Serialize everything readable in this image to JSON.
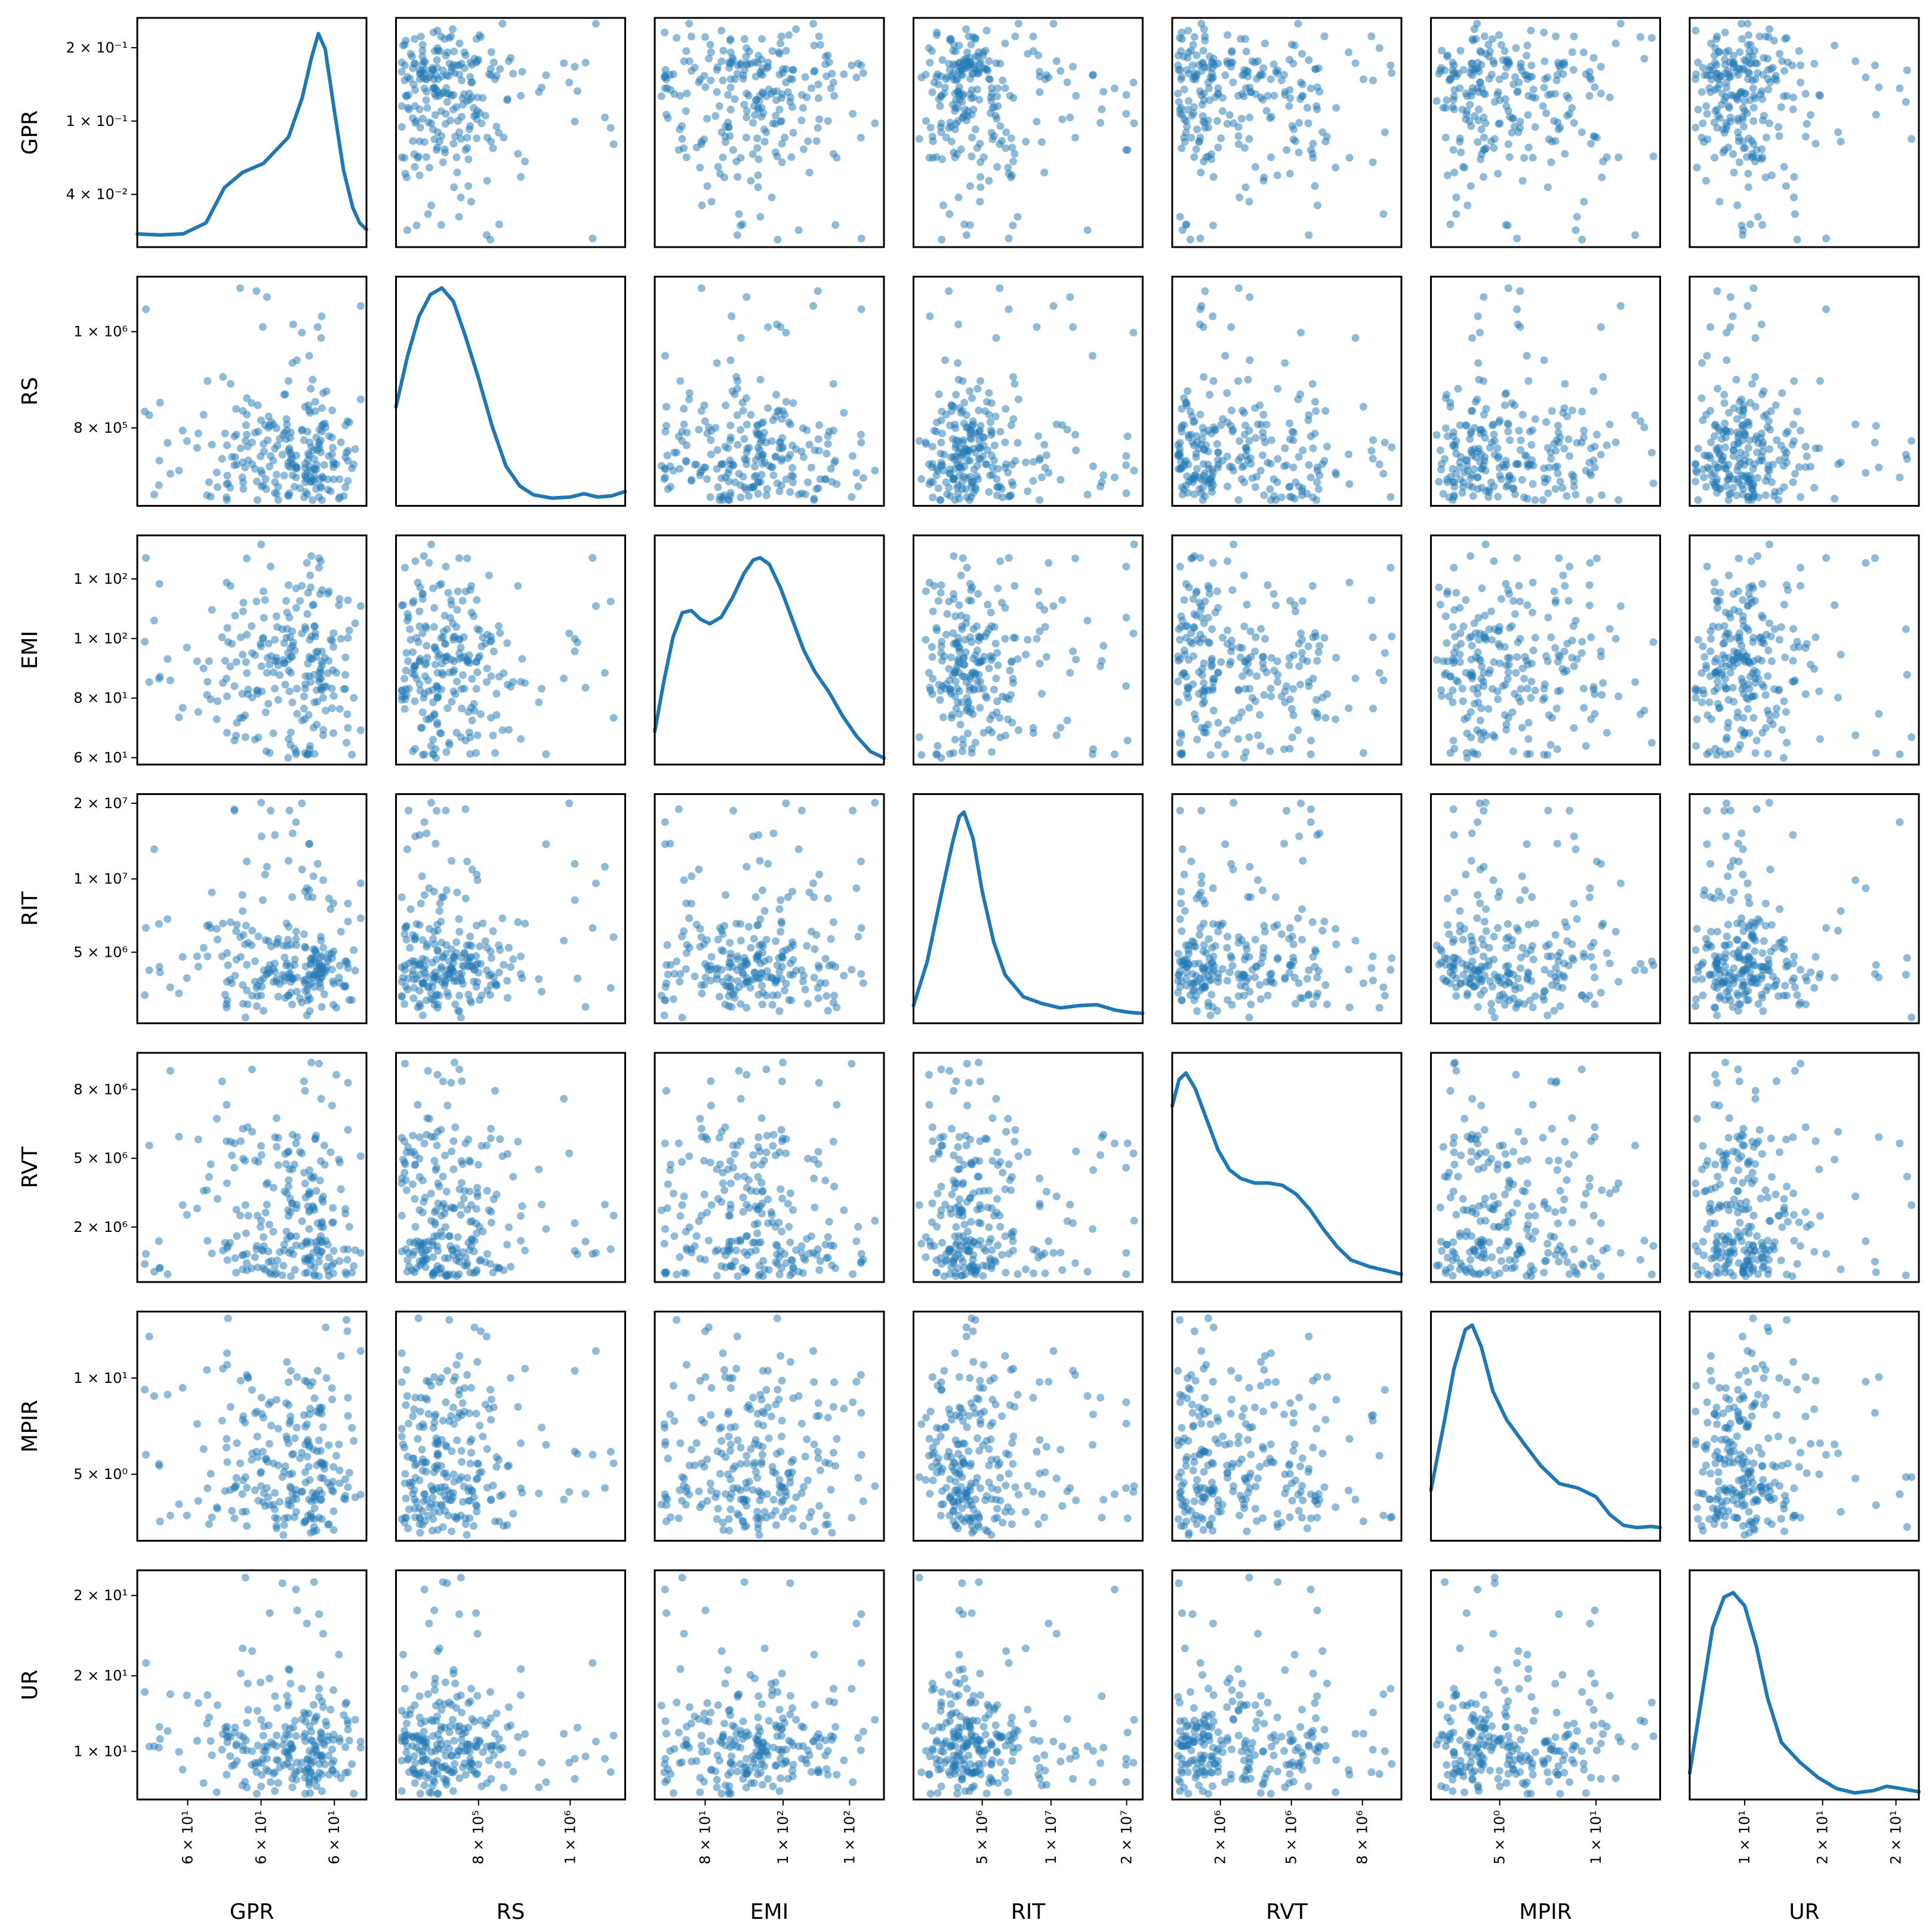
{
  "chart_data": {
    "type": "scatter",
    "title": "",
    "variables": [
      "GPR",
      "RS",
      "EMI",
      "RIT",
      "RVT",
      "MPIR",
      "UR"
    ],
    "diagonal": "kde",
    "scale": "log",
    "marker_color": "#1f77b4",
    "marker_alpha": 0.5,
    "y_tick_labels": {
      "GPR": [
        "2 × 10⁻¹",
        "1 × 10⁻¹",
        "4 × 10⁻²"
      ],
      "RS": [
        "1 × 10⁶",
        "8 × 10⁵"
      ],
      "EMI": [
        "1 × 10²",
        "1 × 10²",
        "8 × 10¹",
        "6 × 10¹"
      ],
      "RIT": [
        "2 × 10⁷",
        "1 × 10⁷",
        "5 × 10⁶"
      ],
      "RVT": [
        "8 × 10⁶",
        "5 × 10⁶",
        "2 × 10⁶"
      ],
      "MPIR": [
        "1 × 10¹",
        "5 × 10⁰"
      ],
      "UR": [
        "2 × 10¹",
        "2 × 10¹",
        "1 × 10¹"
      ]
    },
    "x_tick_labels": {
      "GPR": [
        "6 × 10¹",
        "6 × 10¹",
        "6 × 10¹"
      ],
      "RS": [
        "8 × 10⁵",
        "1 × 10⁶"
      ],
      "EMI": [
        "8 × 10¹",
        "1 × 10²",
        "1 × 10²"
      ],
      "RIT": [
        "5 × 10⁶",
        "1 × 10⁷",
        "2 × 10⁷"
      ],
      "RVT": [
        "2 × 10⁶",
        "5 × 10⁶",
        "8 × 10⁶"
      ],
      "MPIR": [
        "5 × 10⁰",
        "1 × 10¹"
      ],
      "UR": [
        "1 × 10¹",
        "2 × 10¹",
        "2 × 10¹"
      ]
    },
    "kde_curves": {
      "GPR": [
        [
          0.0,
          0.06
        ],
        [
          0.1,
          0.055
        ],
        [
          0.2,
          0.06
        ],
        [
          0.3,
          0.11
        ],
        [
          0.38,
          0.27
        ],
        [
          0.46,
          0.34
        ],
        [
          0.55,
          0.38
        ],
        [
          0.66,
          0.5
        ],
        [
          0.72,
          0.68
        ],
        [
          0.76,
          0.86
        ],
        [
          0.79,
          0.97
        ],
        [
          0.82,
          0.9
        ],
        [
          0.86,
          0.62
        ],
        [
          0.9,
          0.35
        ],
        [
          0.94,
          0.18
        ],
        [
          0.97,
          0.11
        ],
        [
          1.0,
          0.08
        ]
      ],
      "RS": [
        [
          0.0,
          0.45
        ],
        [
          0.05,
          0.68
        ],
        [
          0.1,
          0.86
        ],
        [
          0.15,
          0.96
        ],
        [
          0.2,
          0.99
        ],
        [
          0.25,
          0.93
        ],
        [
          0.3,
          0.78
        ],
        [
          0.36,
          0.58
        ],
        [
          0.42,
          0.36
        ],
        [
          0.48,
          0.18
        ],
        [
          0.54,
          0.09
        ],
        [
          0.6,
          0.05
        ],
        [
          0.68,
          0.035
        ],
        [
          0.76,
          0.04
        ],
        [
          0.82,
          0.055
        ],
        [
          0.88,
          0.04
        ],
        [
          0.94,
          0.045
        ],
        [
          1.0,
          0.065
        ]
      ],
      "EMI": [
        [
          0.0,
          0.15
        ],
        [
          0.04,
          0.38
        ],
        [
          0.08,
          0.58
        ],
        [
          0.12,
          0.69
        ],
        [
          0.16,
          0.7
        ],
        [
          0.2,
          0.66
        ],
        [
          0.24,
          0.64
        ],
        [
          0.29,
          0.67
        ],
        [
          0.34,
          0.76
        ],
        [
          0.39,
          0.87
        ],
        [
          0.43,
          0.93
        ],
        [
          0.46,
          0.94
        ],
        [
          0.5,
          0.91
        ],
        [
          0.55,
          0.8
        ],
        [
          0.6,
          0.66
        ],
        [
          0.65,
          0.52
        ],
        [
          0.7,
          0.42
        ],
        [
          0.76,
          0.33
        ],
        [
          0.82,
          0.22
        ],
        [
          0.88,
          0.13
        ],
        [
          0.94,
          0.06
        ],
        [
          1.0,
          0.03
        ]
      ],
      "RIT": [
        [
          0.0,
          0.08
        ],
        [
          0.06,
          0.28
        ],
        [
          0.12,
          0.58
        ],
        [
          0.17,
          0.82
        ],
        [
          0.2,
          0.94
        ],
        [
          0.22,
          0.96
        ],
        [
          0.26,
          0.84
        ],
        [
          0.3,
          0.6
        ],
        [
          0.35,
          0.37
        ],
        [
          0.4,
          0.22
        ],
        [
          0.48,
          0.12
        ],
        [
          0.56,
          0.09
        ],
        [
          0.64,
          0.07
        ],
        [
          0.72,
          0.08
        ],
        [
          0.8,
          0.085
        ],
        [
          0.88,
          0.06
        ],
        [
          0.94,
          0.05
        ],
        [
          1.0,
          0.045
        ]
      ],
      "RVT": [
        [
          0.0,
          0.8
        ],
        [
          0.03,
          0.92
        ],
        [
          0.06,
          0.95
        ],
        [
          0.1,
          0.88
        ],
        [
          0.15,
          0.74
        ],
        [
          0.2,
          0.6
        ],
        [
          0.25,
          0.51
        ],
        [
          0.3,
          0.47
        ],
        [
          0.36,
          0.45
        ],
        [
          0.42,
          0.45
        ],
        [
          0.48,
          0.44
        ],
        [
          0.54,
          0.4
        ],
        [
          0.6,
          0.33
        ],
        [
          0.66,
          0.24
        ],
        [
          0.72,
          0.16
        ],
        [
          0.78,
          0.1
        ],
        [
          0.86,
          0.07
        ],
        [
          0.94,
          0.05
        ],
        [
          1.0,
          0.035
        ]
      ],
      "MPIR": [
        [
          0.0,
          0.23
        ],
        [
          0.06,
          0.55
        ],
        [
          0.1,
          0.78
        ],
        [
          0.15,
          0.96
        ],
        [
          0.18,
          0.98
        ],
        [
          0.22,
          0.88
        ],
        [
          0.27,
          0.68
        ],
        [
          0.33,
          0.55
        ],
        [
          0.4,
          0.45
        ],
        [
          0.48,
          0.34
        ],
        [
          0.56,
          0.26
        ],
        [
          0.64,
          0.24
        ],
        [
          0.72,
          0.2
        ],
        [
          0.78,
          0.12
        ],
        [
          0.84,
          0.07
        ],
        [
          0.9,
          0.06
        ],
        [
          0.96,
          0.065
        ],
        [
          1.0,
          0.06
        ]
      ],
      "UR": [
        [
          0.0,
          0.12
        ],
        [
          0.05,
          0.45
        ],
        [
          0.1,
          0.78
        ],
        [
          0.15,
          0.92
        ],
        [
          0.19,
          0.94
        ],
        [
          0.24,
          0.88
        ],
        [
          0.29,
          0.7
        ],
        [
          0.34,
          0.46
        ],
        [
          0.4,
          0.26
        ],
        [
          0.48,
          0.17
        ],
        [
          0.56,
          0.1
        ],
        [
          0.64,
          0.05
        ],
        [
          0.72,
          0.03
        ],
        [
          0.8,
          0.04
        ],
        [
          0.86,
          0.06
        ],
        [
          0.92,
          0.05
        ],
        [
          1.0,
          0.035
        ]
      ]
    }
  }
}
